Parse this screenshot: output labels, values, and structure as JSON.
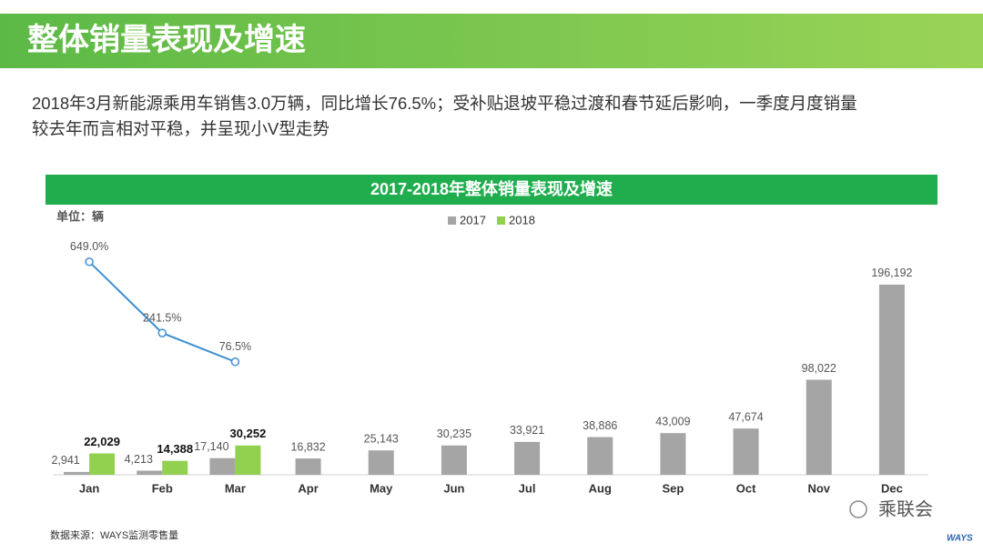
{
  "header": {
    "title": "整体销量表现及增速"
  },
  "description": [
    "2018年3月新能源乘用车销售3.0万辆，同比增长76.5%；受补贴退坡平稳过渡和春节延后影响，一季度月度销量",
    "较去年而言相对平稳，并呈现小V型走势"
  ],
  "chart_data": {
    "type": "bar",
    "title": "2017-2018年整体销量表现及增速",
    "unit": "单位：辆",
    "categories": [
      "Jan",
      "Feb",
      "Mar",
      "Apr",
      "May",
      "Jun",
      "Jul",
      "Aug",
      "Sep",
      "Oct",
      "Nov",
      "Dec"
    ],
    "series": [
      {
        "name": "2017",
        "color": "#a5a5a5",
        "values": [
          2941,
          4213,
          17140,
          16832,
          25143,
          30235,
          33921,
          38886,
          43009,
          47674,
          98022,
          196192
        ],
        "value_labels": [
          "2,941",
          "4,213",
          "17,140",
          "16,832",
          "25,143",
          "30,235",
          "33,921",
          "38,886",
          "43,009",
          "47,674",
          "98,022",
          "196,192"
        ]
      },
      {
        "name": "2018",
        "color": "#92d050",
        "values": [
          22029,
          14388,
          30252,
          null,
          null,
          null,
          null,
          null,
          null,
          null,
          null,
          null
        ],
        "value_labels": [
          "22,029",
          "14,388",
          "30,252",
          null,
          null,
          null,
          null,
          null,
          null,
          null,
          null,
          null
        ]
      }
    ],
    "growth": {
      "color": "#3d8fd1",
      "axis": "y2",
      "values": [
        649.0,
        241.5,
        76.5,
        null,
        null,
        null,
        null,
        null,
        null,
        null,
        null,
        null
      ],
      "value_labels": [
        "649.0%",
        "241.5%",
        "76.5%",
        null,
        null,
        null,
        null,
        null,
        null,
        null,
        null,
        null
      ]
    },
    "ylim": [
      0,
      274000
    ],
    "y2lim": [
      -570,
      950
    ],
    "grid": false,
    "legend": "top"
  },
  "footer": {
    "source": "数据来源：WAYS监测零售量",
    "watermark": "乘联会",
    "logo": "WAYS"
  }
}
